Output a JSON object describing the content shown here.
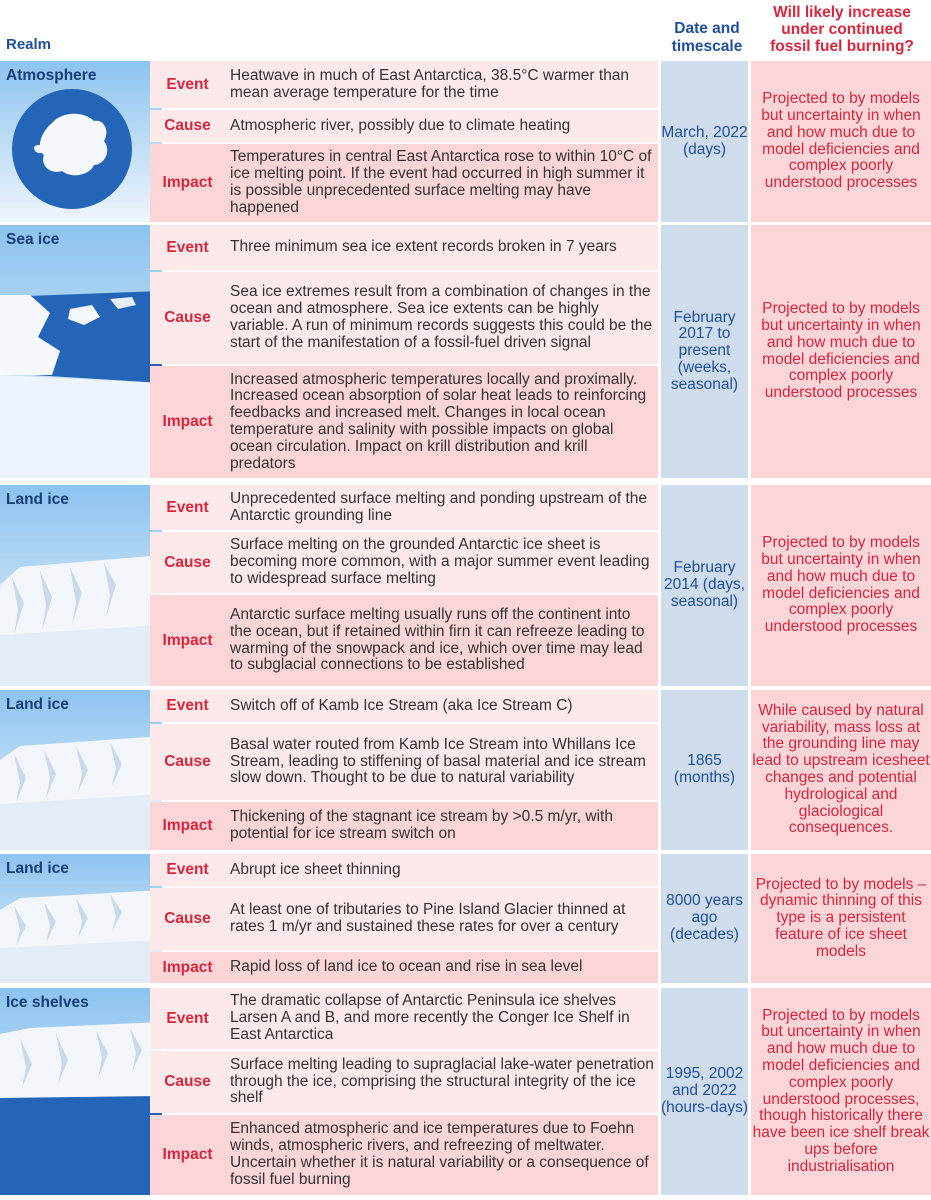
{
  "header": {
    "realm": "Realm",
    "date_line1": "Date and",
    "date_line2": "timescale",
    "will_line1": "Will likely increase",
    "will_line2": "under continued",
    "will_line3": "fossil fuel burning?"
  },
  "row_labels": {
    "event": "Event",
    "cause": "Cause",
    "impact": "Impact"
  },
  "groups": [
    {
      "realm": "Atmosphere",
      "event": "Heatwave in much of East Antarctica, 38.5°C warmer than mean average temperature for the time",
      "cause": "Atmospheric river, possibly due to climate heating",
      "impact": "Temperatures in central East Antarctica rose to within 10°C of ice melting point. If the event had occurred in high summer it is possible unprecedented surface melting may have happened",
      "date": "March, 2022 (days)",
      "will": "Projected to by models but uncertainty in when and how much due to model deficiencies and complex poorly understood processes"
    },
    {
      "realm": "Sea ice",
      "event": "Three minimum sea ice extent records broken in 7 years",
      "cause": "Sea ice extremes result from a combination of changes in the ocean and atmosphere. Sea ice extents can be highly variable. A run of minimum records suggests this could be the start of the manifestation of a fossil-fuel driven signal",
      "impact": "Increased atmospheric temperatures locally and proximally. Increased ocean absorption of solar heat leads to reinforcing feedbacks and increased melt. Changes in local ocean temperature and salinity with possible impacts on global ocean circulation. Impact on krill distribution and krill predators",
      "date": "February 2017 to present (weeks, seasonal)",
      "will": "Projected to by models but uncertainty in when and how much due to model deficiencies and complex poorly understood processes"
    },
    {
      "realm": "Land ice",
      "event": "Unprecedented surface melting and ponding upstream of the Antarctic grounding line",
      "cause": "Surface melting on the grounded Antarctic ice sheet is becoming more common, with a major summer event leading to widespread surface melting",
      "impact": "Antarctic surface melting usually runs off the continent into the ocean, but if retained within firn it can refreeze leading to warming of the snowpack and ice, which over time may lead to subglacial connections to be established",
      "date": "February 2014 (days, seasonal)",
      "will": "Projected to by models but uncertainty in when and how much due to model deficiencies and complex poorly understood processes"
    },
    {
      "realm": "Land ice",
      "event": "Switch off of Kamb Ice Stream (aka Ice Stream C)",
      "cause": "Basal water routed from Kamb Ice Stream into Whillans Ice Stream, leading to stiffening of basal material and ice stream slow down. Thought to be due to natural variability",
      "impact": "Thickening of the stagnant ice stream by >0.5 m/yr, with potential for ice stream switch on",
      "date": "1865 (months)",
      "will": "While caused by natural variability, mass loss at the grounding line may lead to upstream icesheet changes and potential hydrological and glaciological consequences."
    },
    {
      "realm": "Land ice",
      "event": "Abrupt ice sheet thinning",
      "cause": "At least one of tributaries to Pine Island Glacier thinned at rates 1 m/yr and sustained these rates for over a century",
      "impact": "Rapid loss of land ice to ocean and rise in sea level",
      "date": "8000 years ago (decades)",
      "will": "Projected to by models – dynamic thinning of this type is a persistent feature of ice sheet models"
    },
    {
      "realm": "Ice shelves",
      "event": "The dramatic collapse of Antarctic Peninsula ice shelves Larsen A and B, and more recently the Conger Ice Shelf in East Antarctica",
      "cause": "Surface melting leading to supraglacial lake-water penetration through the ice, comprising the structural integrity of the ice shelf",
      "impact": "Enhanced atmospheric and ice temperatures due to Foehn winds, atmospheric rivers, and refreezing of meltwater. Uncertain whether it is natural variability or a consequence of fossil fuel burning",
      "date": "1995, 2002 and 2022 (hours-days)",
      "will": "Projected to by models but uncertainty in when and how much due to model deficiencies and complex poorly understood processes, though historically there have been ice shelf break ups before industrialisation"
    }
  ]
}
